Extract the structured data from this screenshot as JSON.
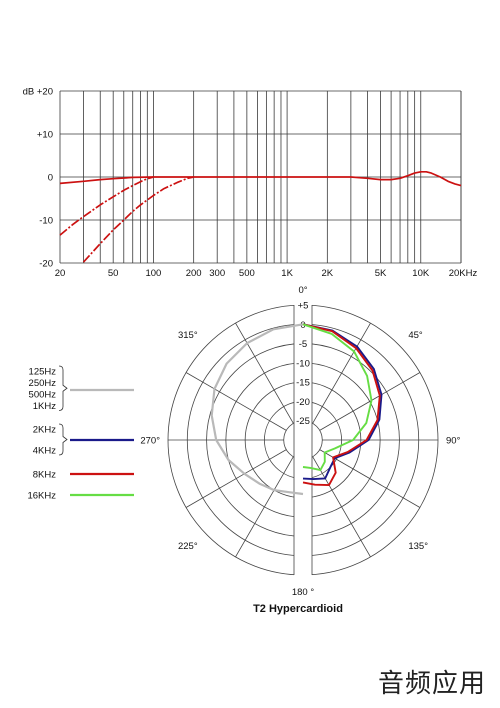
{
  "watermark": "音频应用",
  "chart_data": [
    {
      "type": "line",
      "title": "",
      "xscale": "log",
      "xlim": [
        20,
        20000
      ],
      "ylim": [
        -20,
        20
      ],
      "x_ticks": [
        {
          "v": 20,
          "label": "20"
        },
        {
          "v": 50,
          "label": "50"
        },
        {
          "v": 100,
          "label": "100"
        },
        {
          "v": 200,
          "label": "200"
        },
        {
          "v": 300,
          "label": "300"
        },
        {
          "v": 500,
          "label": "500"
        },
        {
          "v": 1000,
          "label": "1K"
        },
        {
          "v": 2000,
          "label": "2K"
        },
        {
          "v": 5000,
          "label": "5K"
        },
        {
          "v": 10000,
          "label": "10K"
        },
        {
          "v": 20000,
          "label": "20KHz"
        }
      ],
      "y_ticks": [
        {
          "v": 20,
          "label": "dB +20"
        },
        {
          "v": 10,
          "label": "+10"
        },
        {
          "v": 0,
          "label": "0"
        },
        {
          "v": -10,
          "label": "-10"
        },
        {
          "v": -20,
          "label": "-20"
        }
      ],
      "grid": true,
      "series": [
        {
          "style": "solid",
          "color": "#cc1111",
          "x": [
            20,
            30,
            40,
            50,
            70,
            100,
            150,
            200,
            500,
            1000,
            2000,
            3000,
            4000,
            5000,
            6000,
            7000,
            8000,
            9000,
            10000,
            11000,
            12000,
            14000,
            16000,
            18000,
            20000
          ],
          "y": [
            -1.5,
            -1.0,
            -0.6,
            -0.4,
            -0.1,
            0,
            0,
            0,
            0,
            0,
            0,
            0,
            -0.3,
            -0.6,
            -0.6,
            -0.3,
            0.3,
            0.9,
            1.2,
            1.2,
            0.9,
            0,
            -1.0,
            -1.6,
            -2.0
          ]
        },
        {
          "style": "dashed",
          "color": "#cc1111",
          "x": [
            20,
            25,
            30,
            40,
            50,
            60,
            70,
            80,
            90,
            100
          ],
          "y": [
            -13.5,
            -11.0,
            -9.2,
            -6.5,
            -4.6,
            -3.1,
            -2.0,
            -1.1,
            -0.4,
            0
          ]
        },
        {
          "style": "dashed",
          "color": "#cc1111",
          "x": [
            30,
            40,
            50,
            60,
            70,
            80,
            100,
            120,
            150,
            180,
            200
          ],
          "y": [
            -19.8,
            -15.5,
            -12.3,
            -10.0,
            -8.0,
            -6.5,
            -4.3,
            -2.7,
            -1.3,
            -0.3,
            0
          ]
        }
      ]
    },
    {
      "type": "polar",
      "title": "T2  Hypercardioid",
      "rlim": [
        -30,
        5
      ],
      "r_ticks": [
        "+5",
        "0",
        "-5",
        "-10",
        "-15",
        "-20",
        "-25"
      ],
      "r_values": [
        5,
        0,
        -5,
        -10,
        -15,
        -20,
        -25
      ],
      "angle_labels": [
        {
          "deg": 0,
          "label": "0°"
        },
        {
          "deg": 45,
          "label": "45°"
        },
        {
          "deg": 90,
          "label": "90°"
        },
        {
          "deg": 135,
          "label": "135°"
        },
        {
          "deg": 180,
          "label": "180 °"
        },
        {
          "deg": 225,
          "label": "225°"
        },
        {
          "deg": 270,
          "label": "270°"
        },
        {
          "deg": 315,
          "label": "315°"
        }
      ],
      "legend": [
        {
          "labels": [
            "125Hz",
            "250Hz",
            "500Hz",
            "1KHz"
          ],
          "color": "#b9b9b9"
        },
        {
          "labels": [
            "2KHz",
            "4KHz"
          ],
          "color": "#1a1a8a"
        },
        {
          "labels": [
            "8KHz"
          ],
          "color": "#cc1111"
        },
        {
          "labels": [
            "16KHz"
          ],
          "color": "#66dd44"
        }
      ],
      "series": [
        {
          "name": "125Hz, 250Hz, 500Hz, 1KHz",
          "color": "#b9b9b9",
          "half": "left",
          "angles": [
            0,
            15,
            30,
            45,
            60,
            75,
            90,
            105,
            120,
            135,
            150,
            165,
            180
          ],
          "db": [
            0,
            -0.3,
            -1,
            -2,
            -3.5,
            -5.5,
            -7.5,
            -10,
            -12.5,
            -14,
            -15,
            -16,
            -16
          ]
        },
        {
          "name": "2KHz, 4KHz",
          "color": "#1a1a8a",
          "half": "right",
          "angles": [
            0,
            15,
            30,
            45,
            60,
            75,
            90,
            105,
            120,
            135,
            150,
            165,
            180
          ],
          "db": [
            0,
            -0.6,
            -2,
            -4,
            -6.5,
            -9.5,
            -13,
            -17.5,
            -20.5,
            -20,
            -18.5,
            -19.5,
            -20
          ]
        },
        {
          "name": "8KHz",
          "color": "#cc1111",
          "half": "right",
          "angles": [
            0,
            15,
            30,
            45,
            60,
            75,
            90,
            105,
            120,
            135,
            150,
            165,
            180
          ],
          "db": [
            0,
            -0.8,
            -2.5,
            -4.5,
            -7,
            -10,
            -13.5,
            -18,
            -21,
            -18,
            -16.5,
            -18,
            -19
          ]
        },
        {
          "name": "16KHz",
          "color": "#66dd44",
          "half": "right",
          "angles": [
            0,
            15,
            30,
            45,
            60,
            75,
            90,
            105,
            120,
            135,
            150,
            165,
            180
          ],
          "db": [
            0,
            -1.5,
            -3.5,
            -6.5,
            -9.5,
            -13,
            -17,
            -21.5,
            -23.5,
            -22,
            -21,
            -22.5,
            -23
          ]
        }
      ]
    }
  ]
}
